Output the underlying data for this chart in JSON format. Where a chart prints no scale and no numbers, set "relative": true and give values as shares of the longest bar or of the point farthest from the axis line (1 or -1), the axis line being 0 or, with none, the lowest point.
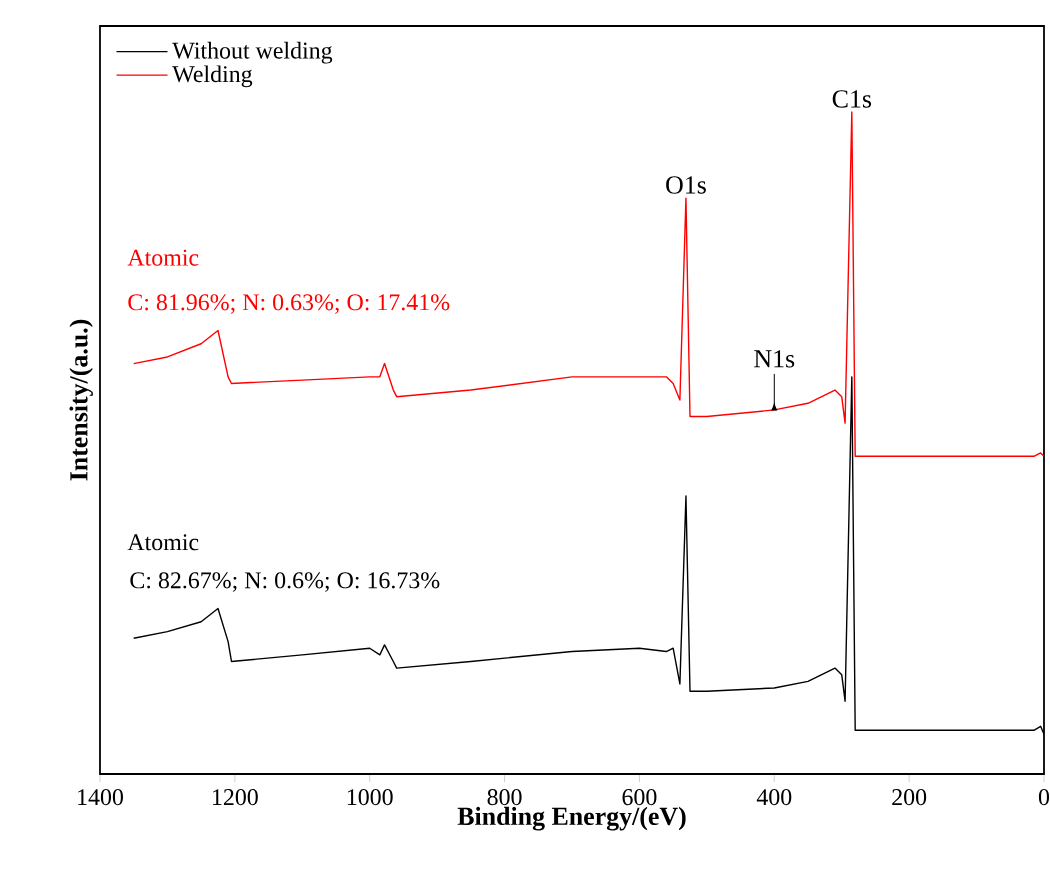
{
  "chart_data": {
    "type": "line",
    "relative": true,
    "xlabel": "Binding Energy/(eV)",
    "ylabel": "Intensity/(a.u.)",
    "xlim": [
      1400,
      0
    ],
    "xticks": [
      1400,
      1200,
      1000,
      800,
      600,
      400,
      200,
      0
    ],
    "legend": "top left",
    "tick_labels": "x",
    "series": [
      {
        "name": "Without welding",
        "color": "#000000",
        "x": [
          1350,
          1300,
          1250,
          1225,
          1210,
          1205,
          1100,
          1000,
          985,
          978,
          965,
          960,
          850,
          700,
          600,
          560,
          550,
          540,
          531,
          525,
          500,
          400,
          350,
          310,
          300,
          295,
          285,
          280,
          200,
          100,
          15,
          5,
          0
        ],
        "values": [
          0.205,
          0.215,
          0.23,
          0.25,
          0.2,
          0.17,
          0.18,
          0.19,
          0.18,
          0.195,
          0.17,
          0.16,
          0.17,
          0.185,
          0.19,
          0.185,
          0.19,
          0.136,
          0.42,
          0.125,
          0.125,
          0.13,
          0.14,
          0.16,
          0.15,
          0.11,
          0.6,
          0.066,
          0.066,
          0.066,
          0.066,
          0.072,
          0.06
        ]
      },
      {
        "name": "Welding",
        "color": "#ff0000",
        "x": [
          1350,
          1300,
          1250,
          1225,
          1210,
          1205,
          1100,
          1000,
          985,
          978,
          965,
          960,
          850,
          700,
          600,
          560,
          550,
          540,
          531,
          525,
          500,
          400,
          350,
          310,
          300,
          295,
          285,
          280,
          200,
          100,
          15,
          5,
          0
        ],
        "values": [
          0.62,
          0.63,
          0.65,
          0.67,
          0.6,
          0.59,
          0.595,
          0.6,
          0.6,
          0.62,
          0.58,
          0.57,
          0.58,
          0.6,
          0.6,
          0.6,
          0.59,
          0.565,
          0.87,
          0.54,
          0.54,
          0.55,
          0.56,
          0.58,
          0.57,
          0.53,
          1.0,
          0.48,
          0.48,
          0.48,
          0.48,
          0.485,
          0.48
        ]
      }
    ],
    "annotations": [
      "Atomic",
      "C: 81.96%; N: 0.63%; O: 17.41%",
      "Atomic",
      "C: 82.67%; N: 0.6%; O: 16.73%",
      {
        "text": "O1s",
        "x": 531,
        "y": 0.87
      },
      {
        "text": "C1s",
        "x": 285,
        "y": 1.0
      },
      {
        "text": "N1s",
        "x": 400,
        "y": 0.55
      }
    ]
  }
}
